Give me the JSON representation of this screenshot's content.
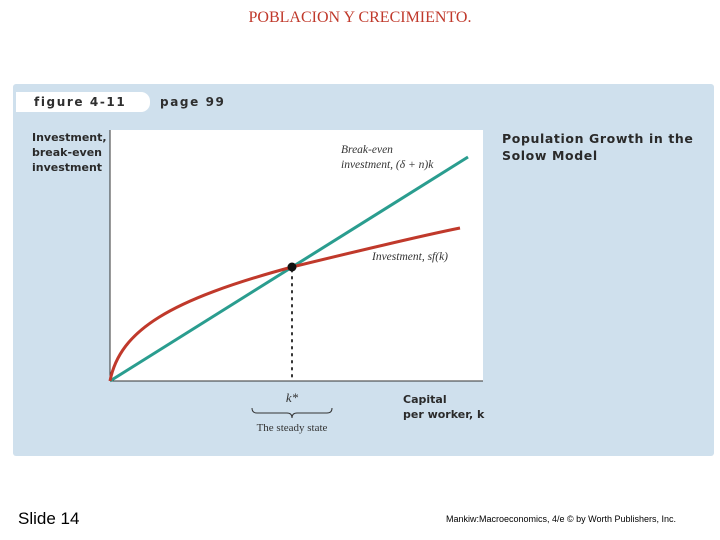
{
  "slide_title": "POBLACION Y CRECIMIENTO.",
  "figure": {
    "tab_label": "figure 4-11",
    "page_label": "page 99",
    "heading_line1": "Population Growth in the",
    "heading_line2": "Solow Model",
    "y_axis_label": [
      "Investment,",
      "break-even",
      "investment"
    ],
    "x_axis_label": [
      "Capital",
      "per worker, k"
    ],
    "breakeven_label": [
      "Break-even",
      "investment, (δ + n)k"
    ],
    "investment_label": "Investment, sf(k)",
    "kstar_label": "k*",
    "steady_state_label": "The steady state"
  },
  "colors": {
    "panel": "#cfe0ed",
    "breakeven_line": "#2a9d8f",
    "investment_curve": "#c0392b",
    "title": "#c0392b"
  },
  "footer": {
    "slide_number": "Slide 14",
    "credit": "Mankiw:Macroeconomics, 4/e © by Worth Publishers, Inc."
  }
}
